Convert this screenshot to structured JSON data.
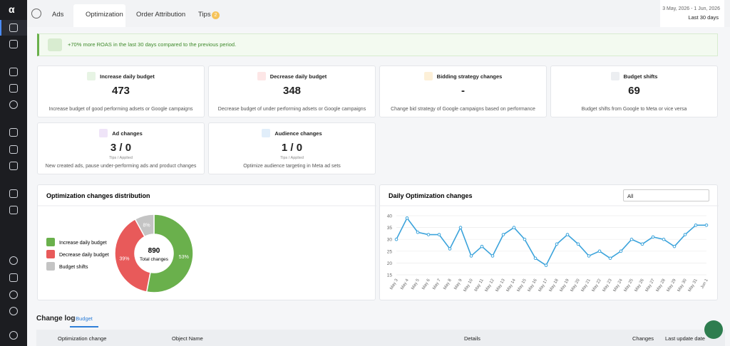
{
  "tabs": [
    {
      "label": "Ads"
    },
    {
      "label": "Optimization"
    },
    {
      "label": "Order Attribution"
    },
    {
      "label": "Tips",
      "badge": 2
    }
  ],
  "date_range": {
    "range": "3 May, 2026 - 1 Jun, 2026",
    "preset": "Last 30 days"
  },
  "banner": "+70% more ROAS in the last 30 days compared to the previous period.",
  "cards": [
    {
      "title": "Increase daily budget",
      "value": 473,
      "description": "Increase budget of good performing adsets or Google campaigns",
      "icon_color": "#e7f4e4"
    },
    {
      "title": "Decrease daily budget",
      "value": 348,
      "description": "Decrease budget of under performing adsets or Google campaigns",
      "icon_color": "#fde6e6"
    },
    {
      "title": "Bidding strategy changes",
      "value": "-",
      "description": "Change bid strategy of Google campaigns based on performance",
      "icon_color": "#fdf0d8"
    },
    {
      "title": "Budget shifts",
      "value": 69,
      "description": "Budget shifts from Google to Meta or vice versa",
      "icon_color": "#eceef1"
    },
    {
      "title": "Ad changes",
      "value": "3 / 0",
      "sublabel": "Tips / Applied",
      "description": "New created ads, pause under-performing ads and product changes",
      "icon_color": "#efe4f8"
    },
    {
      "title": "Audience changes",
      "value": "1 / 0",
      "sublabel": "Tips / Applied",
      "description": "Optimize audience targeting in Meta ad sets",
      "icon_color": "#e1eefa"
    }
  ],
  "chart_data": [
    {
      "type": "pie",
      "title": "Optimization changes distribution",
      "categories": [
        "Increase daily budget",
        "Decrease daily budget",
        "Budget shifts"
      ],
      "values": [
        53,
        39,
        8
      ],
      "value_labels": [
        "53%",
        "39%",
        "8%"
      ],
      "colors": [
        "#6ab04c",
        "#e85a5a",
        "#c4c4c4"
      ],
      "total": 890,
      "total_label": "Total changes"
    },
    {
      "type": "line",
      "title": "Daily Optimization changes",
      "filter": "All",
      "color": "#3ba3db",
      "grid": true,
      "categories": [
        "May 3",
        "May 4",
        "May 5",
        "May 6",
        "May 7",
        "May 8",
        "May 9",
        "May 10",
        "May 11",
        "May 12",
        "May 13",
        "May 14",
        "May 15",
        "May 16",
        "May 17",
        "May 18",
        "May 19",
        "May 20",
        "May 21",
        "May 22",
        "May 23",
        "May 24",
        "May 25",
        "May 26",
        "May 27",
        "May 28",
        "May 29",
        "May 30",
        "May 31",
        "Jun 1"
      ],
      "values": [
        30,
        39,
        33,
        32,
        32,
        26,
        35,
        23,
        27,
        23,
        32,
        35,
        30,
        22,
        19,
        28,
        32,
        28,
        23,
        25,
        22,
        25,
        30,
        28,
        31,
        30,
        27,
        32,
        36,
        36
      ],
      "ylim": [
        15,
        40
      ],
      "yticks": [
        15,
        20,
        25,
        30,
        35,
        40
      ]
    }
  ],
  "change_log": {
    "title": "Change log",
    "tabs": [
      "Budget"
    ],
    "columns": [
      "Optimization change",
      "Object Name",
      "Details",
      "Changes",
      "Last update date"
    ]
  }
}
